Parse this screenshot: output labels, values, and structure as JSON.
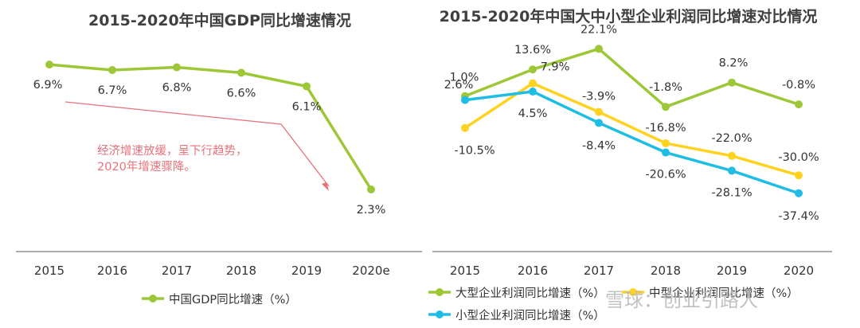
{
  "chart_data": [
    {
      "type": "line",
      "title": "2015-2020年中国GDP同比增速情况",
      "categories": [
        "2015",
        "2016",
        "2017",
        "2018",
        "2019",
        "2020e"
      ],
      "series": [
        {
          "name": "中国GDP同比增速（%）",
          "values": [
            6.9,
            6.7,
            6.8,
            6.6,
            6.1,
            2.3
          ],
          "labels": [
            "6.9%",
            "6.7%",
            "6.8%",
            "6.6%",
            "6.1%",
            "2.3%"
          ],
          "color": "#9dc736"
        }
      ],
      "annotation": "经济增速放缓，呈下行趋势，\n2020年增速骤降。",
      "annotation_color": "#e8727a",
      "grid": false,
      "legend_position": "bottom"
    },
    {
      "type": "line",
      "title": "2015-2020年中国大中小型企业利润同比增速对比情况",
      "categories": [
        "2015",
        "2016",
        "2017",
        "2018",
        "2019",
        "2020"
      ],
      "series": [
        {
          "name": "大型企业利润同比增速（%）",
          "values": [
            2.6,
            13.6,
            22.1,
            -1.8,
            8.2,
            -0.8
          ],
          "labels": [
            "2.6%",
            "13.6%",
            "22.1%",
            "-1.8%",
            "8.2%",
            "-0.8%"
          ],
          "color": "#9dc736"
        },
        {
          "name": "中型企业利润同比增速（%）",
          "values": [
            -10.5,
            7.9,
            -3.9,
            -16.8,
            -22.0,
            -30.0
          ],
          "labels": [
            "-10.5%",
            "7.9%",
            "-3.9%",
            "-16.8%",
            "-22.0%",
            "-30.0%"
          ],
          "color": "#ffd21f"
        },
        {
          "name": "小型企业利润同比增速（%）",
          "values": [
            1.0,
            4.5,
            -8.4,
            -20.6,
            -28.1,
            -37.4
          ],
          "labels": [
            "1.0%",
            "4.5%",
            "-8.4%",
            "-20.6%",
            "-28.1%",
            "-37.4%"
          ],
          "color": "#1ebde4"
        }
      ],
      "grid": false,
      "legend_position": "bottom"
    }
  ],
  "watermark": "雪球：创业引路人"
}
